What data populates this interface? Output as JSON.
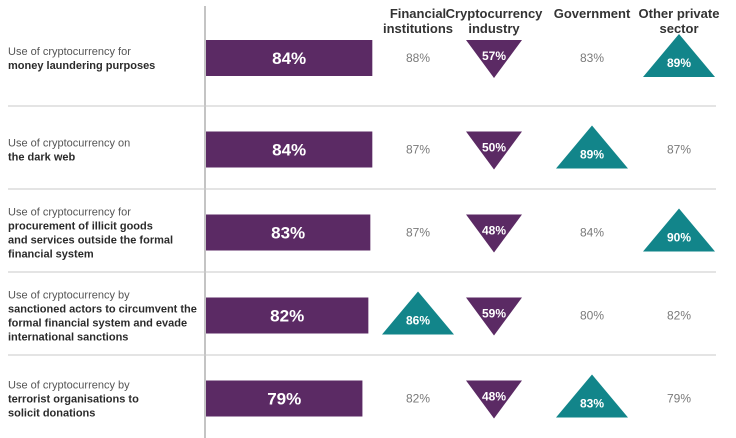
{
  "chart_data": {
    "type": "table",
    "bar_color": "#5b2a64",
    "up_color": "#12858a",
    "down_color": "#5b2a64",
    "neutral_text_color": "#7a7a7a",
    "column_headers": [
      [
        "Financial",
        "institutions"
      ],
      [
        "Cryptocurrency",
        "industry"
      ],
      [
        "Government"
      ],
      [
        "Other private",
        "sector"
      ]
    ],
    "rows": [
      {
        "label_lines": [
          {
            "text": "Use of cryptocurrency for",
            "bold": false
          },
          {
            "text": "money laundering purposes",
            "bold": true
          }
        ],
        "overall": 84,
        "overall_label": "84%",
        "segments": [
          {
            "value": 88,
            "label": "88%",
            "marker": "none"
          },
          {
            "value": 57,
            "label": "57%",
            "marker": "down"
          },
          {
            "value": 83,
            "label": "83%",
            "marker": "none"
          },
          {
            "value": 89,
            "label": "89%",
            "marker": "up"
          }
        ]
      },
      {
        "label_lines": [
          {
            "text": "Use of cryptocurrency on",
            "bold": false
          },
          {
            "text": "the dark web",
            "bold": true
          }
        ],
        "overall": 84,
        "overall_label": "84%",
        "segments": [
          {
            "value": 87,
            "label": "87%",
            "marker": "none"
          },
          {
            "value": 50,
            "label": "50%",
            "marker": "down"
          },
          {
            "value": 89,
            "label": "89%",
            "marker": "up"
          },
          {
            "value": 87,
            "label": "87%",
            "marker": "none"
          }
        ]
      },
      {
        "label_lines": [
          {
            "text": "Use of cryptocurrency for",
            "bold": false
          },
          {
            "text": "procurement of illicit goods",
            "bold": true
          },
          {
            "text": "and services outside the formal",
            "bold": true
          },
          {
            "text": "financial system",
            "bold": true
          }
        ],
        "overall": 83,
        "overall_label": "83%",
        "segments": [
          {
            "value": 87,
            "label": "87%",
            "marker": "none"
          },
          {
            "value": 48,
            "label": "48%",
            "marker": "down"
          },
          {
            "value": 84,
            "label": "84%",
            "marker": "none"
          },
          {
            "value": 90,
            "label": "90%",
            "marker": "up"
          }
        ]
      },
      {
        "label_lines": [
          {
            "text": "Use of cryptocurrency by",
            "bold": false
          },
          {
            "text": "sanctioned actors to circumvent the",
            "bold": true
          },
          {
            "text": "formal financial system and evade",
            "bold": true
          },
          {
            "text": "international sanctions",
            "bold": true
          }
        ],
        "overall": 82,
        "overall_label": "82%",
        "segments": [
          {
            "value": 86,
            "label": "86%",
            "marker": "up"
          },
          {
            "value": 59,
            "label": "59%",
            "marker": "down"
          },
          {
            "value": 80,
            "label": "80%",
            "marker": "none"
          },
          {
            "value": 82,
            "label": "82%",
            "marker": "none"
          }
        ]
      },
      {
        "label_lines": [
          {
            "text": "Use of cryptocurrency by",
            "bold": false
          },
          {
            "text": "terrorist organisations to",
            "bold": true
          },
          {
            "text": "solicit donations",
            "bold": true
          }
        ],
        "overall": 79,
        "overall_label": "79%",
        "segments": [
          {
            "value": 82,
            "label": "82%",
            "marker": "none"
          },
          {
            "value": 48,
            "label": "48%",
            "marker": "down"
          },
          {
            "value": 83,
            "label": "83%",
            "marker": "up"
          },
          {
            "value": 79,
            "label": "79%",
            "marker": "none"
          }
        ]
      }
    ]
  }
}
